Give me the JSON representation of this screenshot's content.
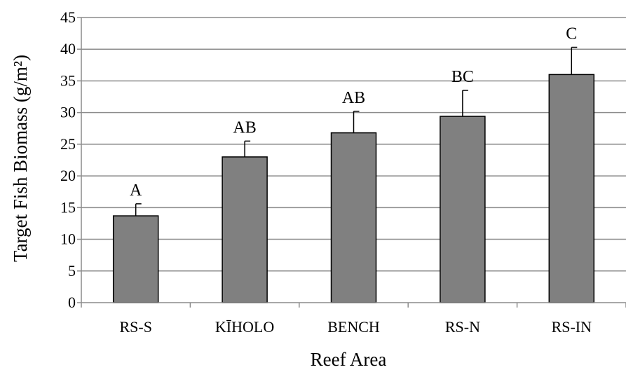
{
  "chart_data": {
    "type": "bar",
    "title": "",
    "xlabel": "Reef Area",
    "ylabel": "Target Fish Biomass (g/m²)",
    "ylim": [
      0,
      45
    ],
    "ytick_step": 5,
    "grid": "horizontal",
    "bar_color": "#808080",
    "categories": [
      "RS-S",
      "KĪHOLO",
      "BENCH",
      "RS-N",
      "RS-IN"
    ],
    "values": [
      13.7,
      23.0,
      26.8,
      29.4,
      36.0
    ],
    "errors": [
      1.9,
      2.5,
      3.4,
      4.1,
      4.3
    ],
    "annotations": [
      "A",
      "AB",
      "AB",
      "BC",
      "C"
    ]
  }
}
